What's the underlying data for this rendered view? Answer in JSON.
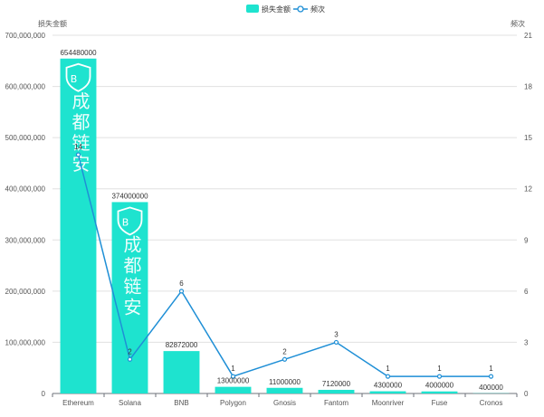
{
  "chart_data": {
    "type": "bar",
    "categories": [
      "Ethereum",
      "Solana",
      "BNB",
      "Polygon",
      "Gnosis",
      "Fantom",
      "Moonriver",
      "Fuse",
      "Cronos"
    ],
    "series": [
      {
        "name": "损失金额",
        "type": "bar",
        "axis": "left",
        "values": [
          654480000,
          374000000,
          82872000,
          13000000,
          11000000,
          7120000,
          4300000,
          4000000,
          400000
        ]
      },
      {
        "name": "频次",
        "type": "line",
        "axis": "right",
        "values": [
          14,
          2,
          6,
          1,
          2,
          3,
          1,
          1,
          1
        ]
      }
    ],
    "ylabel_left": "损失金额",
    "ylabel_right": "频次",
    "ylim_left": [
      0,
      700000000
    ],
    "ylim_right": [
      0,
      21
    ],
    "yticks_left": [
      "0",
      "100,000,000",
      "200,000,000",
      "300,000,000",
      "400,000,000",
      "500,000,000",
      "600,000,000",
      "700,000,000"
    ],
    "yticks_right": [
      "0",
      "3",
      "6",
      "9",
      "12",
      "15",
      "18",
      "21"
    ],
    "legend_position": "top-center",
    "grid": true,
    "colors": {
      "bar": "#1ee3cf",
      "line": "#1f8fd6"
    },
    "watermark": "成都链安"
  }
}
